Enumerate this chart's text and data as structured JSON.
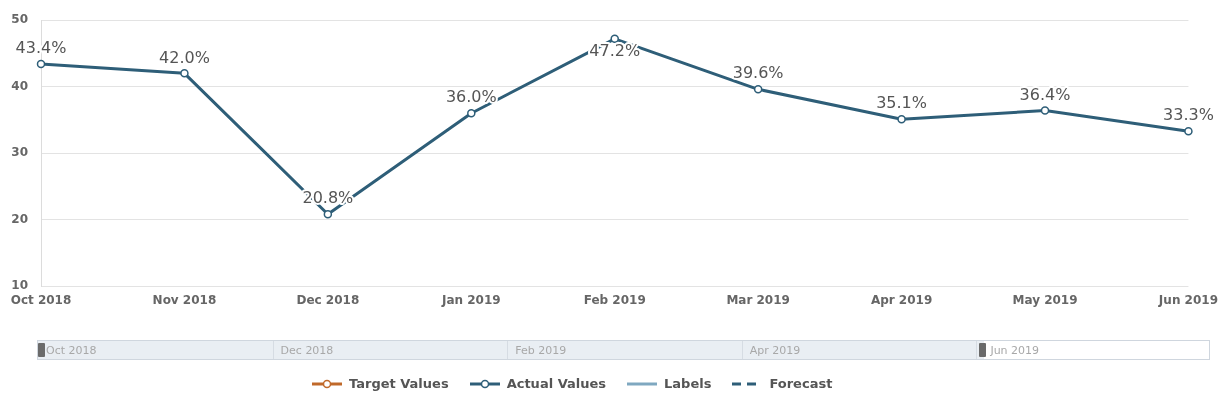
{
  "chart_data": {
    "type": "line",
    "categories": [
      "Oct 2018",
      "Nov 2018",
      "Dec 2018",
      "Jan 2019",
      "Feb 2019",
      "Mar 2019",
      "Apr 2019",
      "May 2019",
      "Jun 2019"
    ],
    "ylim": [
      10,
      50
    ],
    "yticks": [
      10,
      20,
      30,
      40,
      50
    ],
    "grid": "y",
    "legend": "bottom",
    "marker": "circle",
    "line_style": "solid",
    "series": [
      {
        "name": "Target Values",
        "color": "#c0692a",
        "values": [
          null,
          null,
          null,
          null,
          null,
          null,
          null,
          null,
          null
        ]
      },
      {
        "name": "Actual Values",
        "color": "#2e5e78",
        "values": [
          43.4,
          42.0,
          20.8,
          36.0,
          47.2,
          39.6,
          35.1,
          36.4,
          33.3
        ],
        "value_labels": [
          "43.4%",
          "42.0%",
          "20.8%",
          "36.0%",
          "47.2%",
          "39.6%",
          "35.1%",
          "36.4%",
          "33.3%"
        ]
      },
      {
        "name": "Labels",
        "color": "#7fa8c0",
        "values": [
          null,
          null,
          null,
          null,
          null,
          null,
          null,
          null,
          null
        ],
        "marker": "none"
      },
      {
        "name": "Forecast",
        "color": "#2e5e78",
        "values": [
          null,
          null,
          null,
          null,
          null,
          null,
          null,
          null,
          null
        ],
        "marker": "none",
        "line_style": "dashed"
      }
    ]
  }
}
